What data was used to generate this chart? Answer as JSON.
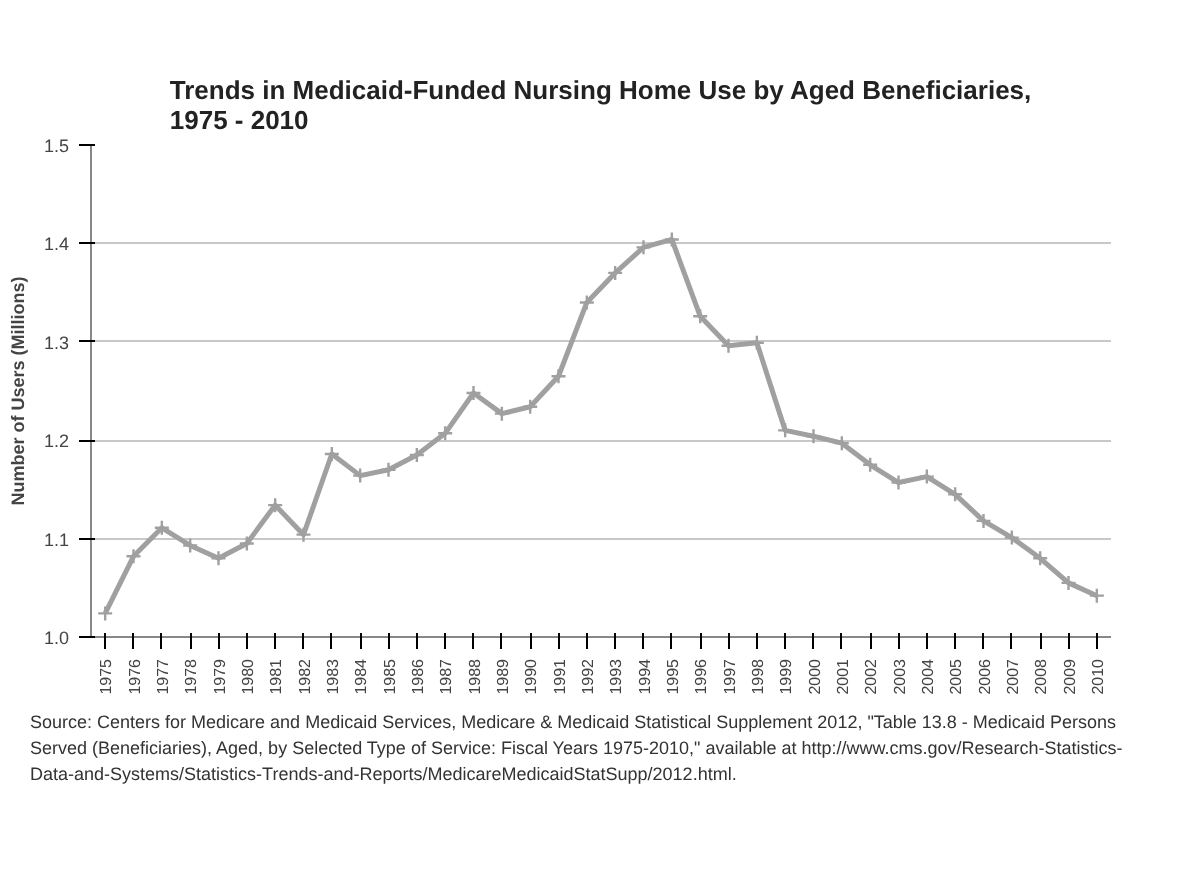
{
  "chart_data": {
    "type": "line",
    "title": "Trends in Medicaid-Funded Nursing Home Use by Aged Beneficiaries,\n1975 - 2010",
    "ylabel": "Number of Users (Millions)",
    "categories": [
      "1975",
      "1976",
      "1977",
      "1978",
      "1979",
      "1980",
      "1981",
      "1982",
      "1983",
      "1984",
      "1985",
      "1986",
      "1987",
      "1988",
      "1989",
      "1990",
      "1991",
      "1992",
      "1993",
      "1994",
      "1995",
      "1996",
      "1997",
      "1998",
      "1999",
      "2000",
      "2001",
      "2002",
      "2003",
      "2004",
      "2005",
      "2006",
      "2007",
      "2008",
      "2009",
      "2010"
    ],
    "series": [
      {
        "color": "#a0a0a0",
        "values": [
          1.024,
          1.082,
          1.111,
          1.093,
          1.08,
          1.095,
          1.134,
          1.104,
          1.186,
          1.164,
          1.17,
          1.185,
          1.207,
          1.248,
          1.227,
          1.234,
          1.265,
          1.34,
          1.37,
          1.396,
          1.404,
          1.326,
          1.296,
          1.299,
          1.21,
          1.204,
          1.197,
          1.175,
          1.157,
          1.163,
          1.145,
          1.118,
          1.101,
          1.08,
          1.055,
          1.042
        ]
      }
    ],
    "ylim": [
      1.0,
      1.5
    ],
    "yticks": [
      {
        "value": 1.0,
        "label": "1.0"
      },
      {
        "value": 1.1,
        "label": "1.1"
      },
      {
        "value": 1.2,
        "label": "1.2"
      },
      {
        "value": 1.3,
        "label": "1.3"
      },
      {
        "value": 1.4,
        "label": "1.4"
      },
      {
        "value": 1.5,
        "label": "1.5"
      }
    ],
    "grid": "y",
    "marker": "cross",
    "line_style": "solid",
    "annotations": [
      "Source:  Centers for Medicare and Medicaid Services, Medicare & Medicaid Statistical Supplement 2012, \"Table 13.8 - Medicaid Persons Served (Beneficiaries), Aged, by Selected Type of Service: Fiscal Years 1975-2010,\" available at http://www.cms.gov/Research-Statistics-Data-and-Systems/Statistics-Trends-and-Reports/MedicareMedicaidStatSupp/2012.html."
    ]
  }
}
